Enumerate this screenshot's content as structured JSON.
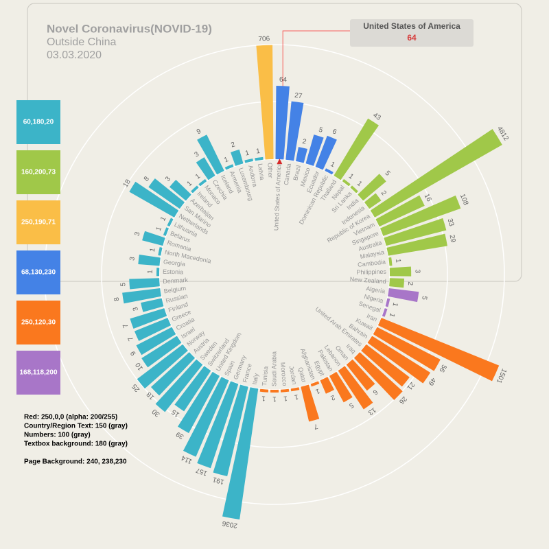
{
  "chart_data": {
    "type": "radial_bar",
    "title": "Novel Coronavirus(NOVID-19)",
    "subtitle": "Outside China",
    "date": "03.03.2020",
    "scale": "log",
    "series": [
      {
        "name": "68,130,230",
        "color": "#4482e6",
        "categories": [
          "United States of America",
          "Canada",
          "Brazil",
          "Mexico",
          "Ecuador",
          "Dominican Republic"
        ],
        "values": [
          64,
          27,
          2,
          5,
          6,
          1
        ]
      },
      {
        "name": "160,200,73",
        "color": "#a0c849",
        "categories": [
          "Thailand",
          "Nepal",
          "Sri Lanka",
          "India",
          "Indonesia",
          "Republic of Korea",
          "Vietnam",
          "Singapore",
          "Australia",
          "Malaysia",
          "Cambodia",
          "Philippines",
          "New Zealand"
        ],
        "values": [
          43,
          1,
          1,
          5,
          2,
          4812,
          16,
          108,
          33,
          29,
          1,
          3,
          2
        ]
      },
      {
        "name": "168,118,200",
        "color": "#a876c8",
        "categories": [
          "Algeria",
          "Nigeria",
          "Senegal"
        ],
        "values": [
          5,
          1,
          1
        ]
      },
      {
        "name": "250,120,30",
        "color": "#fa781e",
        "categories": [
          "Iran",
          "Kuwait",
          "Bahrain",
          "United Arab Emirates",
          "Iraq",
          "Oman",
          "Lebanon",
          "Pakistan",
          "Egypt",
          "Afghanistan",
          "Qatar",
          "Jordan",
          "Morocco",
          "Saudi Arabia",
          "Tunisia"
        ],
        "values": [
          1501,
          56,
          49,
          21,
          26,
          6,
          13,
          5,
          2,
          1,
          7,
          1,
          1,
          1,
          1
        ]
      },
      {
        "name": "60,180,20",
        "color": "#3cb4c8",
        "categories": [
          "Italy",
          "France",
          "Germany",
          "Spain",
          "United Kingdom",
          "Switzerland",
          "Sweden",
          "Austria",
          "Norway",
          "Israel",
          "Croatia",
          "Greece",
          "Finland",
          "Russian",
          "Belgium",
          "Denmark",
          "Estonia",
          "Georgia",
          "North Macedonia",
          "Romania",
          "Belarus",
          "Lithuania",
          "Netherlands",
          "San Marino",
          "Azerbaijan",
          "Ireland",
          "Monaco",
          "Czechia",
          "Iceland",
          "Armenia",
          "Luxembourg",
          "Andorra",
          "Latvia"
        ],
        "values": [
          2036,
          191,
          157,
          114,
          39,
          15,
          30,
          18,
          25,
          10,
          9,
          7,
          7,
          3,
          8,
          5,
          1,
          3,
          1,
          3,
          1,
          1,
          18,
          8,
          3,
          1,
          1,
          3,
          9,
          1,
          2,
          1,
          1
        ]
      },
      {
        "name": "250,190,71",
        "color": "#fabe47",
        "categories": [
          "Other"
        ],
        "values": [
          706
        ]
      }
    ],
    "notes": [
      "Red: 250,0,0 (alpha: 200/255)",
      "Country/Region Text: 150 (gray)",
      "Numbers: 100 (gray)",
      "Textbox background: 180 (gray)",
      "Page Background: 240, 238,230"
    ]
  }
}
